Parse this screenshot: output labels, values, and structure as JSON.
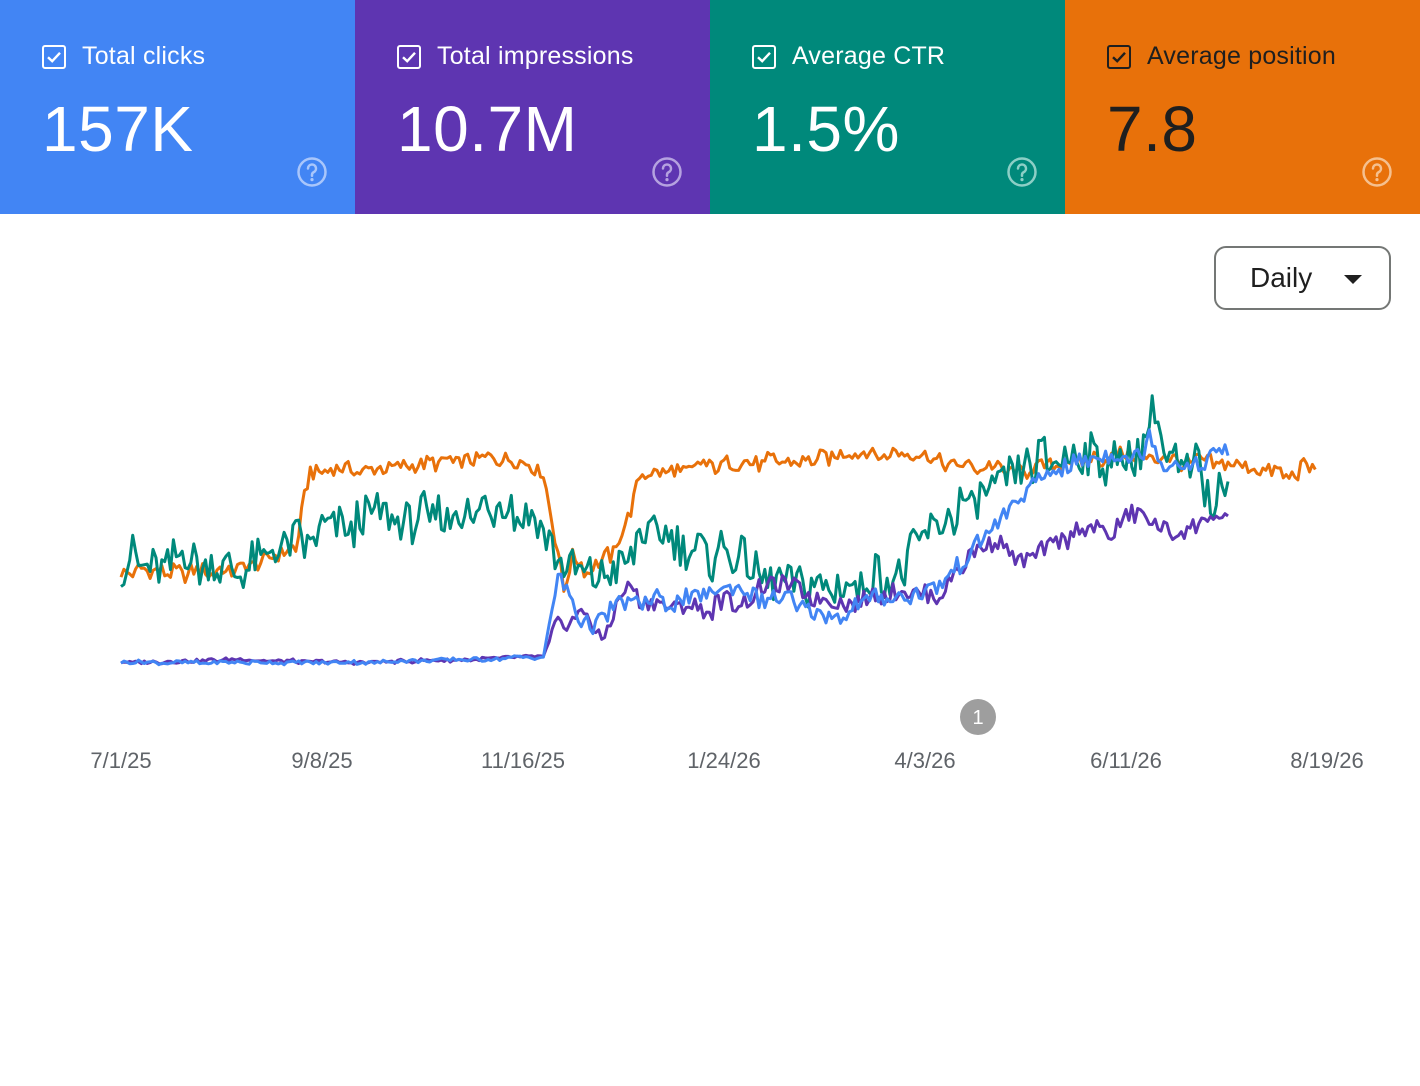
{
  "cards": [
    {
      "label": "Total clicks",
      "value": "157K",
      "bg": "#4285f4",
      "fg": "#ffffff",
      "help_color": "#a9c6fb",
      "checked": true
    },
    {
      "label": "Total impressions",
      "value": "10.7M",
      "bg": "#5e35b1",
      "fg": "#ffffff",
      "help_color": "#b5a2e0",
      "checked": true
    },
    {
      "label": "Average CTR",
      "value": "1.5%",
      "bg": "#00897b",
      "fg": "#ffffff",
      "help_color": "#8ccfc6",
      "checked": true
    },
    {
      "label": "Average position",
      "value": "7.8",
      "bg": "#e8710a",
      "fg": "#1f1f1f",
      "help_color": "#f5c08f",
      "checked": true
    }
  ],
  "granularity": {
    "label": "Daily"
  },
  "annotation": {
    "label": "1",
    "date": "4/3/26"
  },
  "chart_data": {
    "type": "line",
    "x_ticks": [
      "7/1/25",
      "9/8/25",
      "11/16/25",
      "1/24/26",
      "4/3/26",
      "6/11/26",
      "8/19/26"
    ],
    "x_range": [
      "7/1/25",
      "8/19/26"
    ],
    "y_axis": "hidden, each series scaled independently (relative level 0–100)",
    "grid": false,
    "series": [
      {
        "color": "#e8710a",
        "values": [
          [
            0,
            38
          ],
          [
            14,
            37
          ],
          [
            30,
            37
          ],
          [
            45,
            39
          ],
          [
            60,
            45
          ],
          [
            62,
            58
          ],
          [
            65,
            72
          ],
          [
            70,
            73
          ],
          [
            80,
            72
          ],
          [
            90,
            74
          ],
          [
            100,
            74
          ],
          [
            110,
            75
          ],
          [
            120,
            76
          ],
          [
            130,
            77
          ],
          [
            140,
            76
          ],
          [
            145,
            71
          ],
          [
            150,
            44
          ],
          [
            152,
            30
          ],
          [
            155,
            42
          ],
          [
            160,
            38
          ],
          [
            165,
            40
          ],
          [
            170,
            46
          ],
          [
            175,
            58
          ],
          [
            178,
            70
          ],
          [
            182,
            72
          ],
          [
            190,
            72
          ],
          [
            200,
            74
          ],
          [
            210,
            74
          ],
          [
            220,
            75
          ],
          [
            230,
            76
          ],
          [
            240,
            77
          ],
          [
            250,
            78
          ],
          [
            260,
            78
          ],
          [
            270,
            77
          ],
          [
            280,
            76
          ],
          [
            290,
            74
          ],
          [
            300,
            73
          ],
          [
            310,
            72
          ],
          [
            320,
            74
          ],
          [
            330,
            76
          ],
          [
            340,
            77
          ],
          [
            350,
            77
          ],
          [
            360,
            76
          ],
          [
            370,
            75
          ],
          [
            380,
            74
          ],
          [
            395,
            72
          ],
          [
            400,
            71
          ],
          [
            410,
            74
          ]
        ]
      },
      {
        "color": "#00897b",
        "values": [
          [
            0,
            40
          ],
          [
            20,
            42
          ],
          [
            40,
            39
          ],
          [
            55,
            43
          ],
          [
            60,
            46
          ],
          [
            70,
            50
          ],
          [
            80,
            53
          ],
          [
            90,
            56
          ],
          [
            100,
            55
          ],
          [
            110,
            58
          ],
          [
            120,
            57
          ],
          [
            130,
            60
          ],
          [
            140,
            57
          ],
          [
            145,
            52
          ],
          [
            150,
            38
          ],
          [
            160,
            34
          ],
          [
            170,
            38
          ],
          [
            180,
            51
          ],
          [
            190,
            47
          ],
          [
            200,
            43
          ],
          [
            210,
            44
          ],
          [
            220,
            37
          ],
          [
            230,
            36
          ],
          [
            240,
            33
          ],
          [
            250,
            32
          ],
          [
            260,
            35
          ],
          [
            270,
            40
          ],
          [
            280,
            52
          ],
          [
            290,
            60
          ],
          [
            300,
            66
          ],
          [
            310,
            74
          ],
          [
            320,
            77
          ],
          [
            330,
            76
          ],
          [
            340,
            74
          ],
          [
            350,
            78
          ],
          [
            355,
            95
          ],
          [
            360,
            74
          ],
          [
            370,
            73
          ],
          [
            375,
            61
          ],
          [
            380,
            69
          ]
        ]
      },
      {
        "color": "#5e35b1",
        "values": [
          [
            0,
            6
          ],
          [
            40,
            7
          ],
          [
            80,
            6
          ],
          [
            120,
            7
          ],
          [
            145,
            8
          ],
          [
            150,
            20
          ],
          [
            160,
            22
          ],
          [
            165,
            14
          ],
          [
            170,
            25
          ],
          [
            175,
            33
          ],
          [
            180,
            26
          ],
          [
            190,
            26
          ],
          [
            200,
            24
          ],
          [
            210,
            27
          ],
          [
            220,
            31
          ],
          [
            230,
            33
          ],
          [
            240,
            28
          ],
          [
            250,
            26
          ],
          [
            260,
            29
          ],
          [
            270,
            31
          ],
          [
            280,
            28
          ],
          [
            290,
            42
          ],
          [
            300,
            48
          ],
          [
            310,
            40
          ],
          [
            320,
            46
          ],
          [
            330,
            53
          ],
          [
            340,
            50
          ],
          [
            345,
            55
          ],
          [
            350,
            59
          ],
          [
            360,
            50
          ],
          [
            370,
            53
          ],
          [
            375,
            57
          ],
          [
            380,
            55
          ]
        ]
      },
      {
        "color": "#4285f4",
        "values": [
          [
            0,
            6
          ],
          [
            40,
            6
          ],
          [
            80,
            6
          ],
          [
            120,
            7
          ],
          [
            145,
            8
          ],
          [
            150,
            35
          ],
          [
            160,
            18
          ],
          [
            170,
            25
          ],
          [
            180,
            28
          ],
          [
            190,
            26
          ],
          [
            200,
            30
          ],
          [
            210,
            31
          ],
          [
            220,
            28
          ],
          [
            230,
            27
          ],
          [
            240,
            22
          ],
          [
            250,
            24
          ],
          [
            260,
            28
          ],
          [
            270,
            29
          ],
          [
            280,
            31
          ],
          [
            290,
            43
          ],
          [
            300,
            55
          ],
          [
            310,
            65
          ],
          [
            320,
            72
          ],
          [
            330,
            75
          ],
          [
            340,
            77
          ],
          [
            350,
            76
          ],
          [
            353,
            85
          ],
          [
            358,
            74
          ],
          [
            365,
            76
          ],
          [
            370,
            73
          ],
          [
            375,
            79
          ],
          [
            380,
            78
          ]
        ]
      }
    ]
  }
}
